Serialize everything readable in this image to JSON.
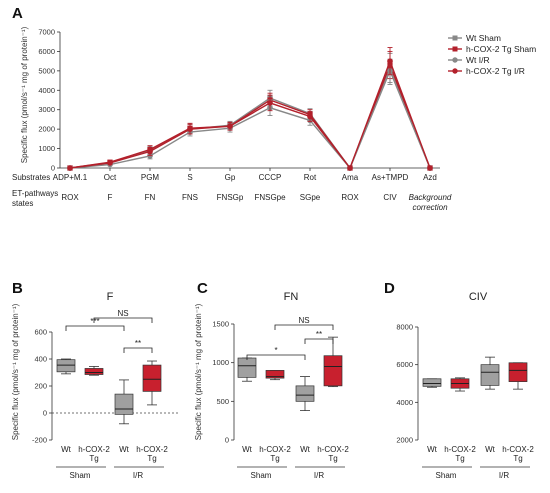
{
  "panel_labels": {
    "a": "A",
    "b": "B",
    "c": "C",
    "d": "D"
  },
  "chart_data": [
    {
      "type": "line",
      "panel": "A",
      "ylabel": "Specific flux (pmol/s⁻¹ mg of protein⁻¹)",
      "ylim": [
        0,
        7000
      ],
      "yticks": [
        "0",
        "1000",
        "2000",
        "3000",
        "4000",
        "5000",
        "6000",
        "7000"
      ],
      "row_labels": {
        "substrates": "Substrates",
        "states": "ET-pathways states"
      },
      "categories": [
        "ADP+M.1",
        "Oct",
        "PGM",
        "S",
        "Gp",
        "CCCP",
        "Rot",
        "Ama",
        "As+TMPD",
        "Azd"
      ],
      "states": [
        "ROX",
        "F",
        "FN",
        "FNS",
        "FNSGp",
        "FNSGpe",
        "SGpe",
        "ROX",
        "CIV",
        "Background correction"
      ],
      "series": [
        {
          "name": "Wt Sham",
          "color": "#888888",
          "marker": "square",
          "values": [
            0,
            280,
            900,
            2000,
            2200,
            3600,
            2800,
            0,
            5100,
            0
          ],
          "err": [
            30,
            60,
            200,
            250,
            200,
            400,
            250,
            20,
            800,
            20
          ]
        },
        {
          "name": "h-COX-2 Tg Sham",
          "color": "#b3202b",
          "marker": "square",
          "values": [
            0,
            300,
            950,
            2050,
            2150,
            3500,
            2750,
            0,
            5300,
            0
          ],
          "err": [
            30,
            60,
            200,
            250,
            200,
            350,
            250,
            20,
            700,
            20
          ]
        },
        {
          "name": "Wt I/R",
          "color": "#888888",
          "marker": "circle",
          "values": [
            0,
            180,
            620,
            1850,
            2050,
            3100,
            2450,
            0,
            5000,
            0
          ],
          "err": [
            30,
            60,
            150,
            200,
            200,
            400,
            250,
            20,
            600,
            20
          ]
        },
        {
          "name": "h-COX-2 Tg I/R",
          "color": "#b3202b",
          "marker": "circle",
          "values": [
            0,
            260,
            850,
            2000,
            2150,
            3350,
            2650,
            0,
            5500,
            0
          ],
          "err": [
            30,
            60,
            200,
            250,
            200,
            400,
            250,
            20,
            700,
            20
          ]
        }
      ]
    },
    {
      "type": "box",
      "panel": "B",
      "title": "F",
      "ylabel": "Specific flux (pmol/s⁻¹ mg of protein⁻¹)",
      "ylim": [
        -200,
        600
      ],
      "yticks": [
        "-200",
        "0",
        "200",
        "400",
        "600"
      ],
      "categories": [
        "Wt",
        "h-COX-2 Tg",
        "Wt",
        "h-COX-2 Tg"
      ],
      "groups": [
        "Sham",
        "I/R"
      ],
      "boxes": [
        {
          "min": 290,
          "q1": 305,
          "median": 355,
          "q3": 395,
          "max": 400,
          "color": "#a0a0a0"
        },
        {
          "min": 280,
          "q1": 285,
          "median": 300,
          "q3": 330,
          "max": 345,
          "color": "#c8202e"
        },
        {
          "min": -80,
          "q1": -10,
          "median": 30,
          "q3": 140,
          "max": 245,
          "color": "#a0a0a0"
        },
        {
          "min": 60,
          "q1": 160,
          "median": 250,
          "q3": 355,
          "max": 385,
          "color": "#c8202e"
        }
      ],
      "brackets": [
        {
          "from": 0,
          "to": 2,
          "label": "***"
        },
        {
          "from": 1,
          "to": 3,
          "label": "NS"
        },
        {
          "from": 2,
          "to": 3,
          "label": "**"
        }
      ],
      "reference_line": 0
    },
    {
      "type": "box",
      "panel": "C",
      "title": "FN",
      "ylabel": "Specific flux (pmol/s⁻¹ mg of protein⁻¹)",
      "ylim": [
        0,
        1500
      ],
      "yticks": [
        "0",
        "500",
        "1000",
        "1500"
      ],
      "categories": [
        "Wt",
        "h-COX-2 Tg",
        "Wt",
        "h-COX-2 Tg"
      ],
      "groups": [
        "Sham",
        "I/R"
      ],
      "boxes": [
        {
          "min": 760,
          "q1": 810,
          "median": 960,
          "q3": 1060,
          "max": 1060,
          "color": "#a0a0a0"
        },
        {
          "min": 780,
          "q1": 800,
          "median": 820,
          "q3": 900,
          "max": 900,
          "color": "#c8202e"
        },
        {
          "min": 380,
          "q1": 500,
          "median": 580,
          "q3": 700,
          "max": 820,
          "color": "#a0a0a0"
        },
        {
          "min": 690,
          "q1": 700,
          "median": 950,
          "q3": 1090,
          "max": 1330,
          "color": "#c8202e"
        }
      ],
      "brackets": [
        {
          "from": 0,
          "to": 2,
          "label": "*"
        },
        {
          "from": 1,
          "to": 3,
          "label": "NS"
        },
        {
          "from": 2,
          "to": 3,
          "label": "**"
        }
      ]
    },
    {
      "type": "box",
      "panel": "D",
      "title": "CIV",
      "ylabel": "Specific flux (pmol/s⁻¹ mg of protein⁻¹)",
      "ylim": [
        2000,
        8000
      ],
      "yticks": [
        "2000",
        "4000",
        "6000",
        "8000"
      ],
      "categories": [
        "Wt",
        "h-COX-2 Tg",
        "Wt",
        "h-COX-2 Tg"
      ],
      "groups": [
        "Sham",
        "I/R"
      ],
      "boxes": [
        {
          "min": 4800,
          "q1": 4850,
          "median": 5000,
          "q3": 5250,
          "max": 5250,
          "color": "#a0a0a0"
        },
        {
          "min": 4600,
          "q1": 4750,
          "median": 5000,
          "q3": 5250,
          "max": 5300,
          "color": "#c8202e"
        },
        {
          "min": 4700,
          "q1": 4900,
          "median": 5600,
          "q3": 6000,
          "max": 6400,
          "color": "#a0a0a0"
        },
        {
          "min": 4700,
          "q1": 5100,
          "median": 5700,
          "q3": 6100,
          "max": 6100,
          "color": "#c8202e"
        }
      ],
      "brackets": []
    }
  ]
}
